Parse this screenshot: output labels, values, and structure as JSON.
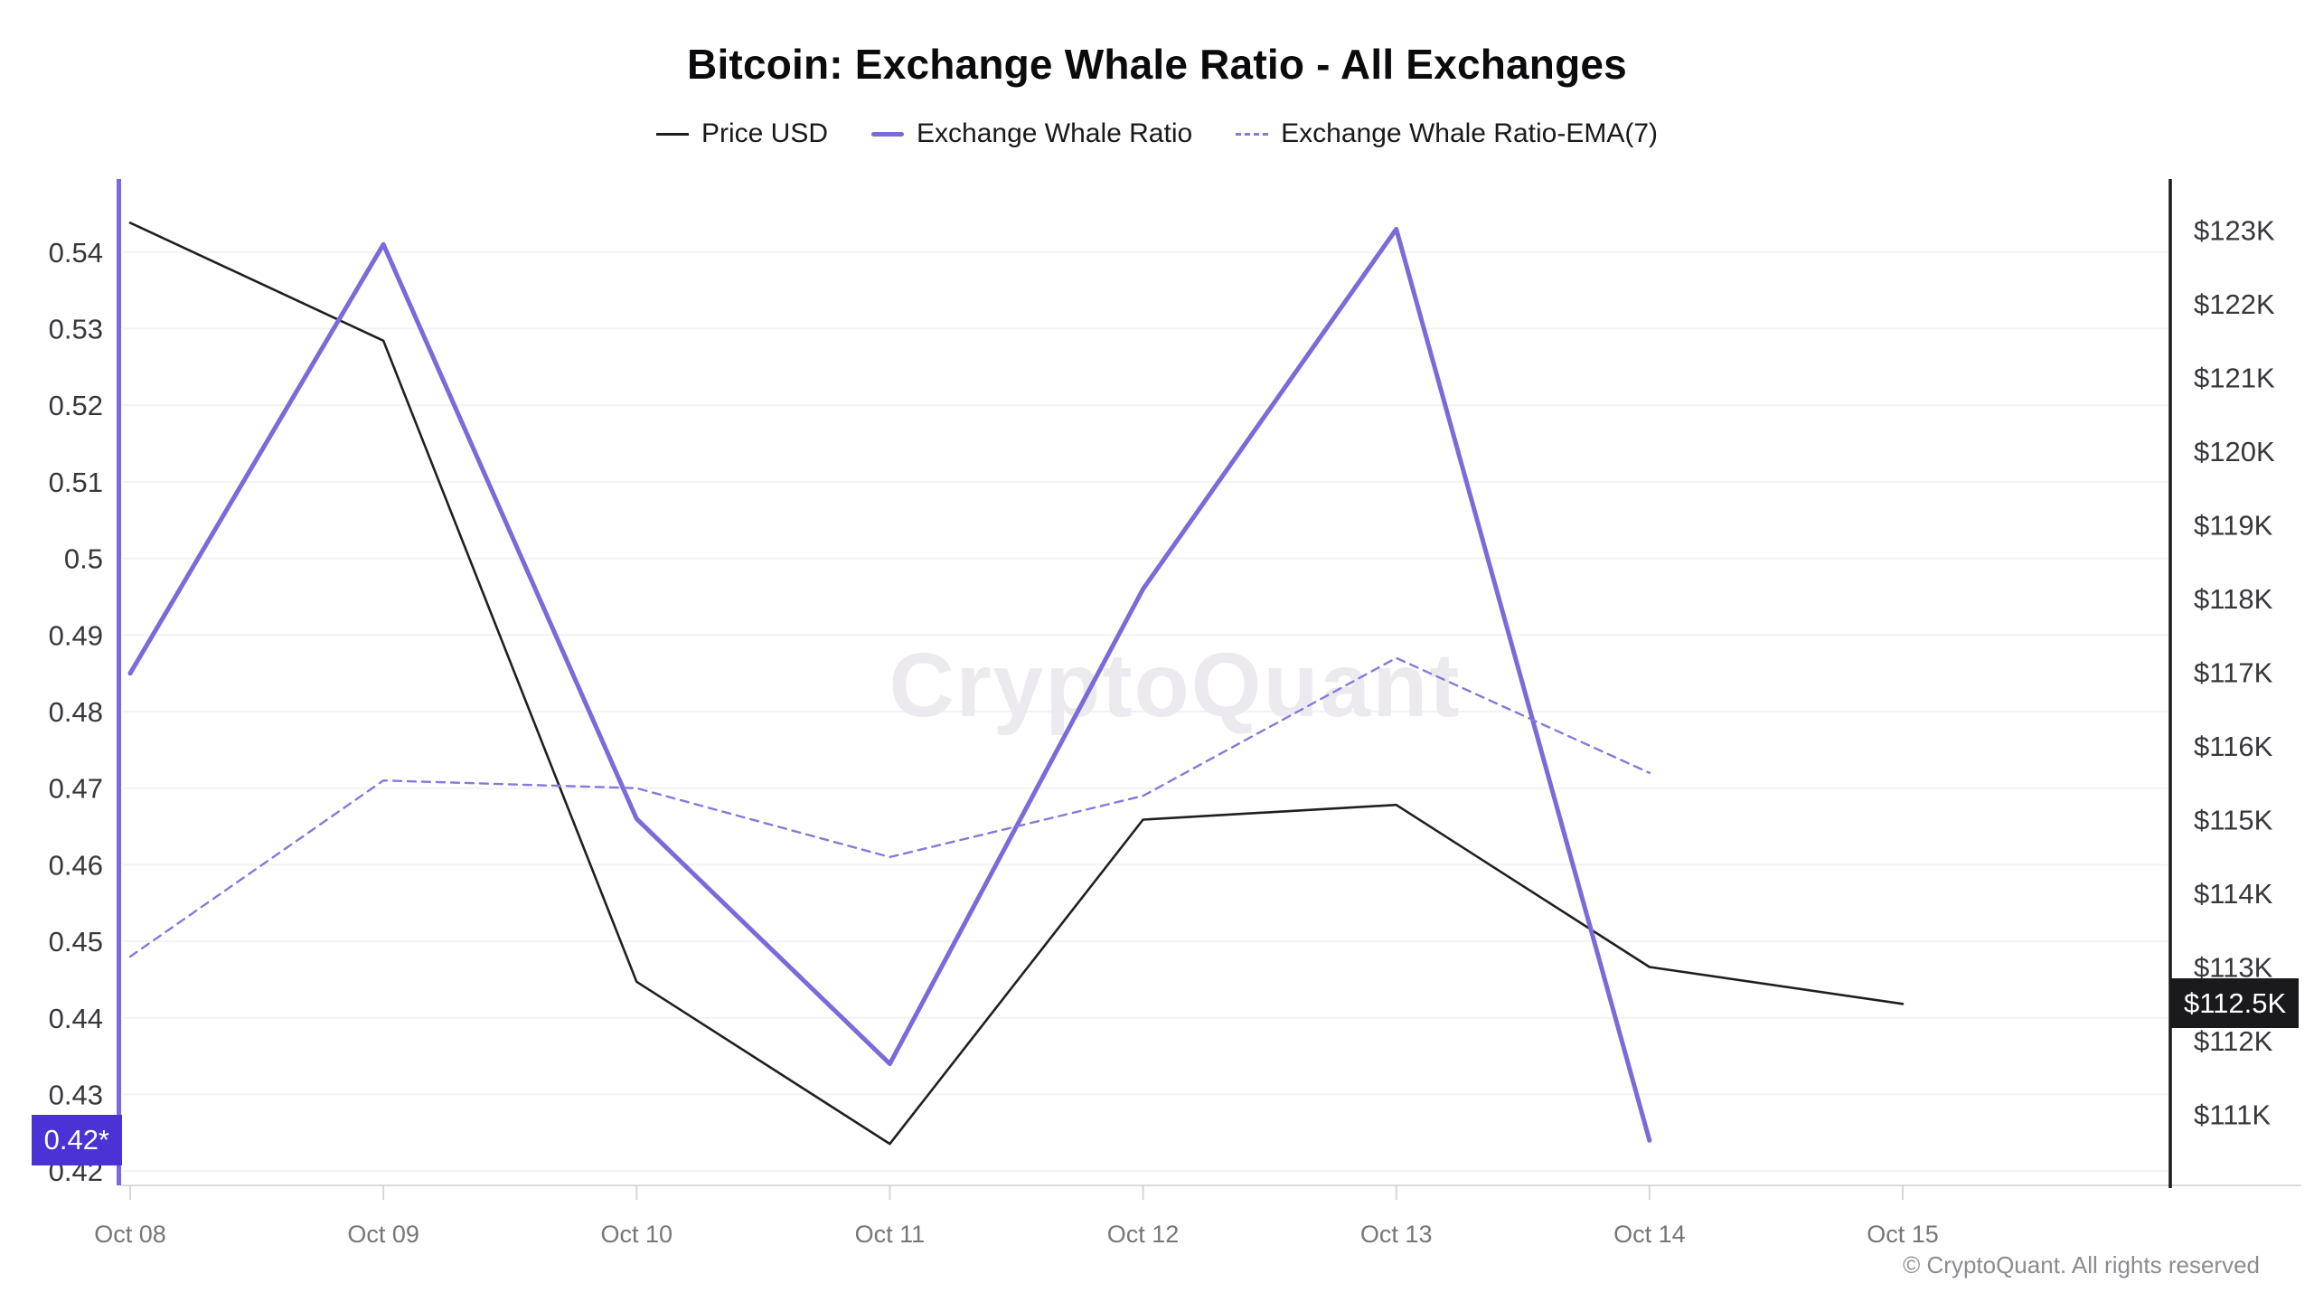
{
  "title": "Bitcoin: Exchange Whale Ratio - All Exchanges",
  "watermark": "CryptoQuant",
  "copyright": "© CryptoQuant. All rights reserved",
  "badges": {
    "ratio_latest": "0.42*",
    "price_latest": "$112.5K"
  },
  "colors": {
    "price_line": "#1f1f22",
    "whale_line": "#7b6ad9",
    "ema_line": "#8679dc",
    "axis_left": "#7c69de",
    "axis_right": "#1a1a1c",
    "grid": "#f3f2f4",
    "tick": "#d6d6da",
    "bottom_axis": "#dcdcdf",
    "ratio_badge_bg": "#4b32d4",
    "price_badge_bg": "#1a1a1c",
    "y_label_text": "#37373c",
    "x_label_text": "#76767b",
    "watermark_text": "#eceaef"
  },
  "legend": {
    "items": [
      {
        "label": "Price USD",
        "series": "price"
      },
      {
        "label": "Exchange Whale Ratio",
        "series": "whale"
      },
      {
        "label": "Exchange Whale Ratio-EMA(7)",
        "series": "ema"
      }
    ]
  },
  "chart_data": {
    "type": "line",
    "x": [
      "Oct 08",
      "Oct 09",
      "Oct 10",
      "Oct 11",
      "Oct 12",
      "Oct 13",
      "Oct 14",
      "Oct 15"
    ],
    "series": [
      {
        "name": "Price USD",
        "axis": "right",
        "style": "solid",
        "color": "#1f1f22",
        "values": [
          123.1,
          121.5,
          112.8,
          110.6,
          115.0,
          115.2,
          113.0,
          112.5
        ]
      },
      {
        "name": "Exchange Whale Ratio",
        "axis": "left",
        "style": "solid",
        "color": "#7b6ad9",
        "values": [
          0.485,
          0.541,
          0.466,
          0.434,
          0.496,
          0.543,
          0.424,
          null
        ]
      },
      {
        "name": "Exchange Whale Ratio-EMA(7)",
        "axis": "left",
        "style": "dashed",
        "color": "#8679dc",
        "values": [
          0.448,
          0.471,
          0.47,
          0.461,
          0.469,
          0.487,
          0.472,
          null
        ]
      }
    ],
    "left_axis": {
      "labels": [
        "0.54",
        "0.53",
        "0.52",
        "0.51",
        "0.5",
        "0.49",
        "0.48",
        "0.47",
        "0.46",
        "0.45",
        "0.44",
        "0.43",
        "0.42"
      ],
      "values": [
        0.54,
        0.53,
        0.52,
        0.51,
        0.5,
        0.49,
        0.48,
        0.47,
        0.46,
        0.45,
        0.44,
        0.43,
        0.42
      ],
      "range": [
        0.4185,
        0.5495
      ]
    },
    "right_axis": {
      "labels": [
        "$123K",
        "$122K",
        "$121K",
        "$120K",
        "$119K",
        "$118K",
        "$117K",
        "$116K",
        "$115K",
        "$114K",
        "$113K",
        "$112K",
        "$111K"
      ],
      "values": [
        123,
        122,
        121,
        120,
        119,
        118,
        117,
        116,
        115,
        114,
        113,
        112,
        111
      ],
      "range": [
        110.3,
        123.7
      ]
    },
    "grid": true,
    "legend_position": "top"
  }
}
